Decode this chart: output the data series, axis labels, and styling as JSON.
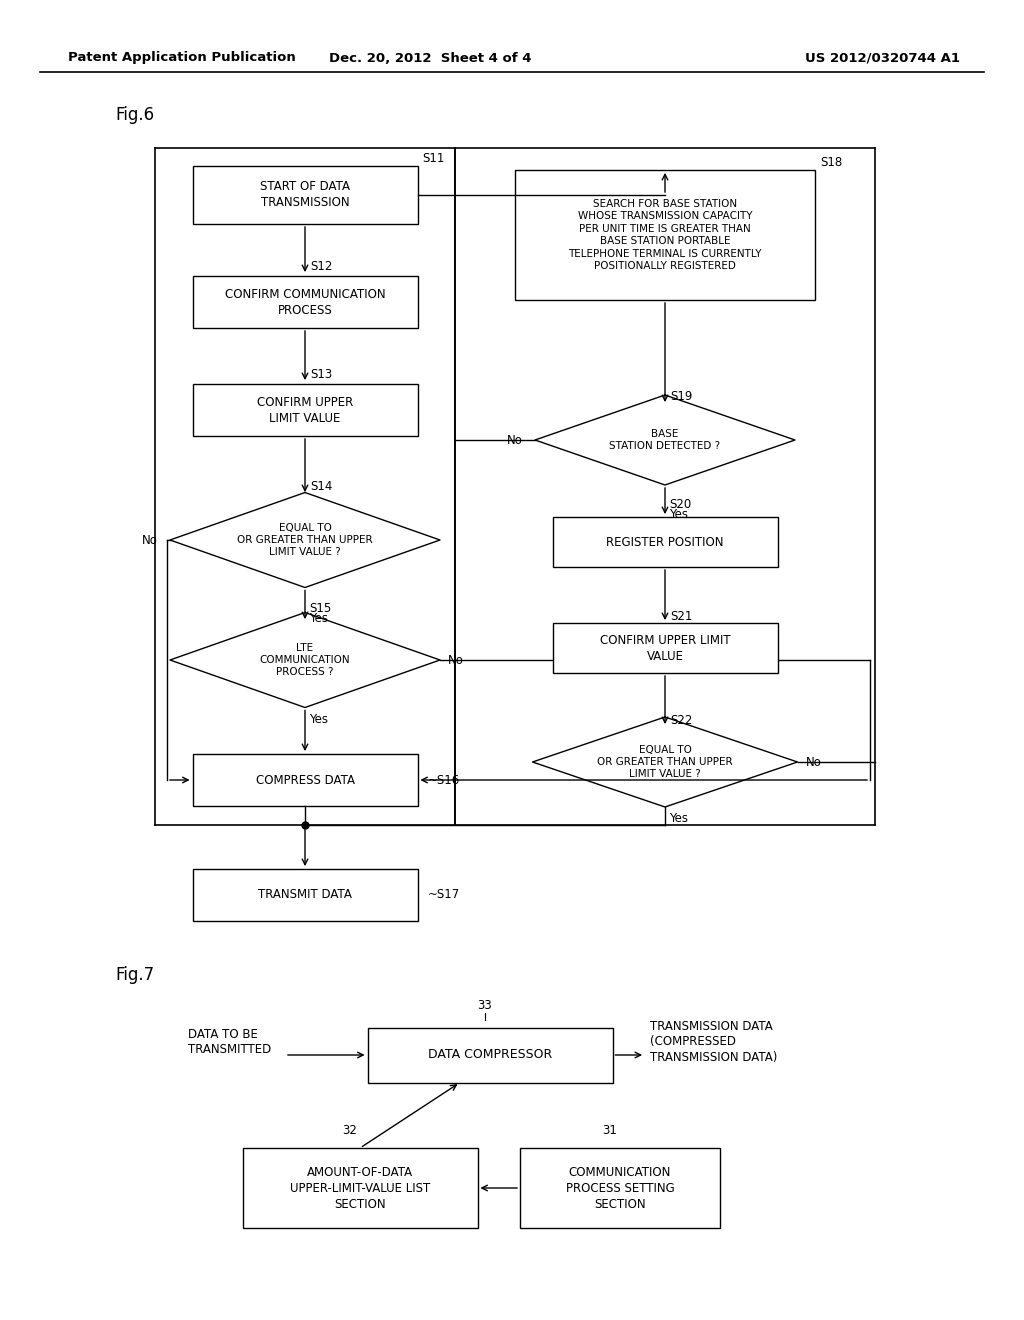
{
  "bg_color": "#ffffff",
  "header_left": "Patent Application Publication",
  "header_mid": "Dec. 20, 2012  Sheet 4 of 4",
  "header_right": "US 2012/0320744 A1"
}
